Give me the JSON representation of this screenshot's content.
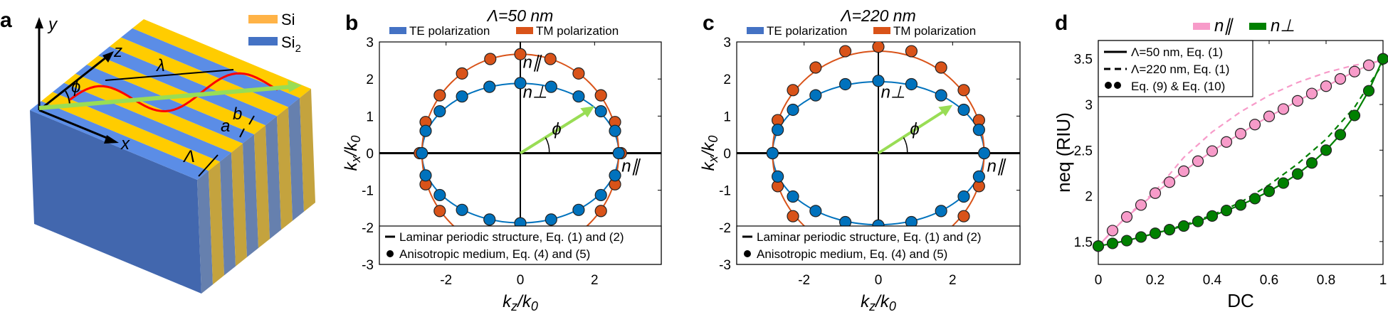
{
  "panel_a": {
    "label": "a",
    "legend": [
      {
        "name": "Si",
        "color": "#FFB347"
      },
      {
        "name": "SiO2",
        "color": "#4472C4"
      }
    ],
    "axis_labels": {
      "y": "y",
      "z": "z",
      "x": "x"
    },
    "annotations": {
      "wavelength": "λ",
      "angle": "ϕ",
      "b": "b",
      "a": "a",
      "period": "Λ"
    },
    "colors": {
      "si_top": "#FFCC00",
      "sio2_top": "#5B8DE6",
      "front": "#4267AE",
      "si_side": "#C4A33E",
      "sio2_side": "#6680AE",
      "wave": "#FF0000",
      "k_arrow": "#99DD55"
    }
  },
  "chart_data": [
    {
      "panel_label": "b",
      "type": "scatter",
      "title": "Λ=50 nm",
      "xlabel": "kz/k0",
      "ylabel": "kx/k0",
      "xlim": [
        -3.8,
        3.8
      ],
      "ylim": [
        -3,
        3
      ],
      "xticks": [
        "-2",
        "0",
        "2"
      ],
      "xtick_values": [
        -2,
        0,
        2
      ],
      "yticks": [
        "3",
        "2",
        "1",
        "0",
        "-1",
        "-2",
        "-3"
      ],
      "ytick_values": [
        3,
        2,
        1,
        0,
        -1,
        -2,
        -3
      ],
      "series_legend": [
        {
          "name": "TE polarization",
          "color": "#4472C4"
        },
        {
          "name": "TM polarization",
          "color": "#D95319"
        }
      ],
      "style_legend": [
        "Laminar periodic structure, Eq. (1) and (2)",
        "Anisotropic medium, Eq. (4) and (5)"
      ],
      "curves": [
        {
          "series": "TE polarization",
          "color": "#0072BD",
          "semi_axis_kz": 2.65,
          "semi_axis_kx": 1.88
        },
        {
          "series": "TM polarization",
          "color": "#D95319",
          "semi_axis_kz": 2.65,
          "semi_axis_kx": 2.67
        }
      ],
      "points": [
        {
          "series": "TE polarization",
          "color": "#0072BD",
          "kz": [
            0,
            0.83,
            1.57,
            2.17,
            2.55,
            2.65
          ],
          "kx": [
            1.89,
            1.79,
            1.53,
            1.13,
            0.6,
            0
          ],
          "symmetric": true
        },
        {
          "series": "TM polarization",
          "color": "#D95319",
          "kz": [
            0,
            0.81,
            1.57,
            2.17,
            2.55,
            2.71
          ],
          "kx": [
            2.67,
            2.54,
            2.15,
            1.56,
            0.84,
            0
          ],
          "symmetric": true
        }
      ],
      "annotations": {
        "n_par_top": "n∥",
        "n_perp": "n⊥",
        "n_par_side": "n∥",
        "phi": "ϕ"
      },
      "k_arrow": {
        "kz": 2.0,
        "kx": 1.27
      }
    },
    {
      "panel_label": "c",
      "type": "scatter",
      "title": "Λ=220 nm",
      "xlabel": "kz/k0",
      "ylabel": "kx/k0",
      "xlim": [
        -3.8,
        3.8
      ],
      "ylim": [
        -3,
        3
      ],
      "xticks": [
        "-2",
        "0",
        "2"
      ],
      "xtick_values": [
        -2,
        0,
        2
      ],
      "yticks": [
        "3",
        "2",
        "1",
        "0",
        "-1",
        "-2",
        "-3"
      ],
      "ytick_values": [
        3,
        2,
        1,
        0,
        -1,
        -2,
        -3
      ],
      "series_legend": [
        {
          "name": "TE polarization",
          "color": "#4472C4"
        },
        {
          "name": "TM polarization",
          "color": "#D95319"
        }
      ],
      "style_legend": [
        "Laminar periodic structure, Eq. (1) and (2)",
        "Anisotropic medium, Eq. (4) and (5)"
      ],
      "curves": [
        {
          "series": "TE polarization",
          "color": "#0072BD",
          "semi_axis_kz": 2.85,
          "semi_axis_kx": 1.93
        },
        {
          "series": "TM polarization",
          "color": "#D95319",
          "semi_axis_kz": 2.85,
          "semi_axis_kx": 2.75
        }
      ],
      "points": [
        {
          "series": "TE polarization",
          "color": "#0072BD",
          "kz": [
            0,
            0.89,
            1.69,
            2.3,
            2.71,
            2.85
          ],
          "kx": [
            1.95,
            1.86,
            1.56,
            1.17,
            0.63,
            0
          ],
          "symmetric": true
        },
        {
          "series": "TM polarization",
          "color": "#D95319",
          "kz": [
            0,
            0.89,
            1.69,
            2.3,
            2.71,
            2.85
          ],
          "kx": [
            2.87,
            2.75,
            2.31,
            1.7,
            0.89,
            0
          ],
          "symmetric": true
        }
      ],
      "annotations": {
        "n_par_top": "",
        "n_perp": "n⊥",
        "n_par_side": "n∥",
        "phi": "ϕ"
      },
      "k_arrow": {
        "kz": 2.0,
        "kx": 1.3
      }
    },
    {
      "panel_label": "d",
      "type": "line",
      "xlabel": "DC",
      "ylabel": "neq (RIU)",
      "xlim": [
        0,
        1
      ],
      "ylim": [
        1.25,
        3.7
      ],
      "xticks": [
        "0",
        "0.2",
        "0.4",
        "0.6",
        "0.8",
        "1"
      ],
      "xtick_values": [
        0,
        0.2,
        0.4,
        0.6,
        0.8,
        1
      ],
      "yticks": [
        "1.5",
        "2",
        "2.5",
        "3",
        "3.5"
      ],
      "ytick_values": [
        1.5,
        2,
        2.5,
        3,
        3.5
      ],
      "series_legend": [
        {
          "name": "n∥",
          "color": "#F79BC9"
        },
        {
          "name": "n⊥",
          "color": "#008000"
        }
      ],
      "style_legend": [
        "Λ=50 nm, Eq. (1)",
        "Λ=220 nm, Eq. (1)",
        "Eq. (9) & Eq. (10)"
      ],
      "x": [
        0,
        0.05,
        0.1,
        0.15,
        0.2,
        0.25,
        0.3,
        0.35,
        0.4,
        0.45,
        0.5,
        0.55,
        0.6,
        0.65,
        0.7,
        0.75,
        0.8,
        0.85,
        0.9,
        0.95,
        1
      ],
      "series": [
        {
          "name": "n∥",
          "style": "points+solid",
          "color": "#F79BC9",
          "values": [
            1.45,
            1.62,
            1.77,
            1.9,
            2.03,
            2.15,
            2.27,
            2.38,
            2.49,
            2.59,
            2.68,
            2.78,
            2.87,
            2.95,
            3.04,
            3.12,
            3.2,
            3.28,
            3.36,
            3.43,
            3.5
          ]
        },
        {
          "name": "n⊥",
          "style": "points+solid",
          "color": "#008000",
          "values": [
            1.45,
            1.48,
            1.51,
            1.55,
            1.59,
            1.63,
            1.67,
            1.72,
            1.78,
            1.84,
            1.9,
            1.97,
            2.05,
            2.14,
            2.24,
            2.36,
            2.5,
            2.67,
            2.88,
            3.15,
            3.5
          ]
        },
        {
          "name": "n∥",
          "style": "dashed",
          "color": "#F79BC9",
          "x": [
            0,
            0.1,
            0.2,
            0.3,
            0.4,
            0.5,
            0.6,
            0.7,
            0.8,
            0.9,
            1
          ],
          "values": [
            1.45,
            1.78,
            2.05,
            2.42,
            2.7,
            2.92,
            3.1,
            3.24,
            3.35,
            3.43,
            3.48
          ]
        },
        {
          "name": "n⊥",
          "style": "dashed",
          "color": "#008000",
          "x": [
            0,
            0.1,
            0.2,
            0.3,
            0.4,
            0.5,
            0.6,
            0.7,
            0.8,
            0.9,
            1
          ],
          "values": [
            1.45,
            1.51,
            1.59,
            1.68,
            1.79,
            1.93,
            2.12,
            2.35,
            2.62,
            2.97,
            3.45
          ]
        }
      ]
    }
  ]
}
